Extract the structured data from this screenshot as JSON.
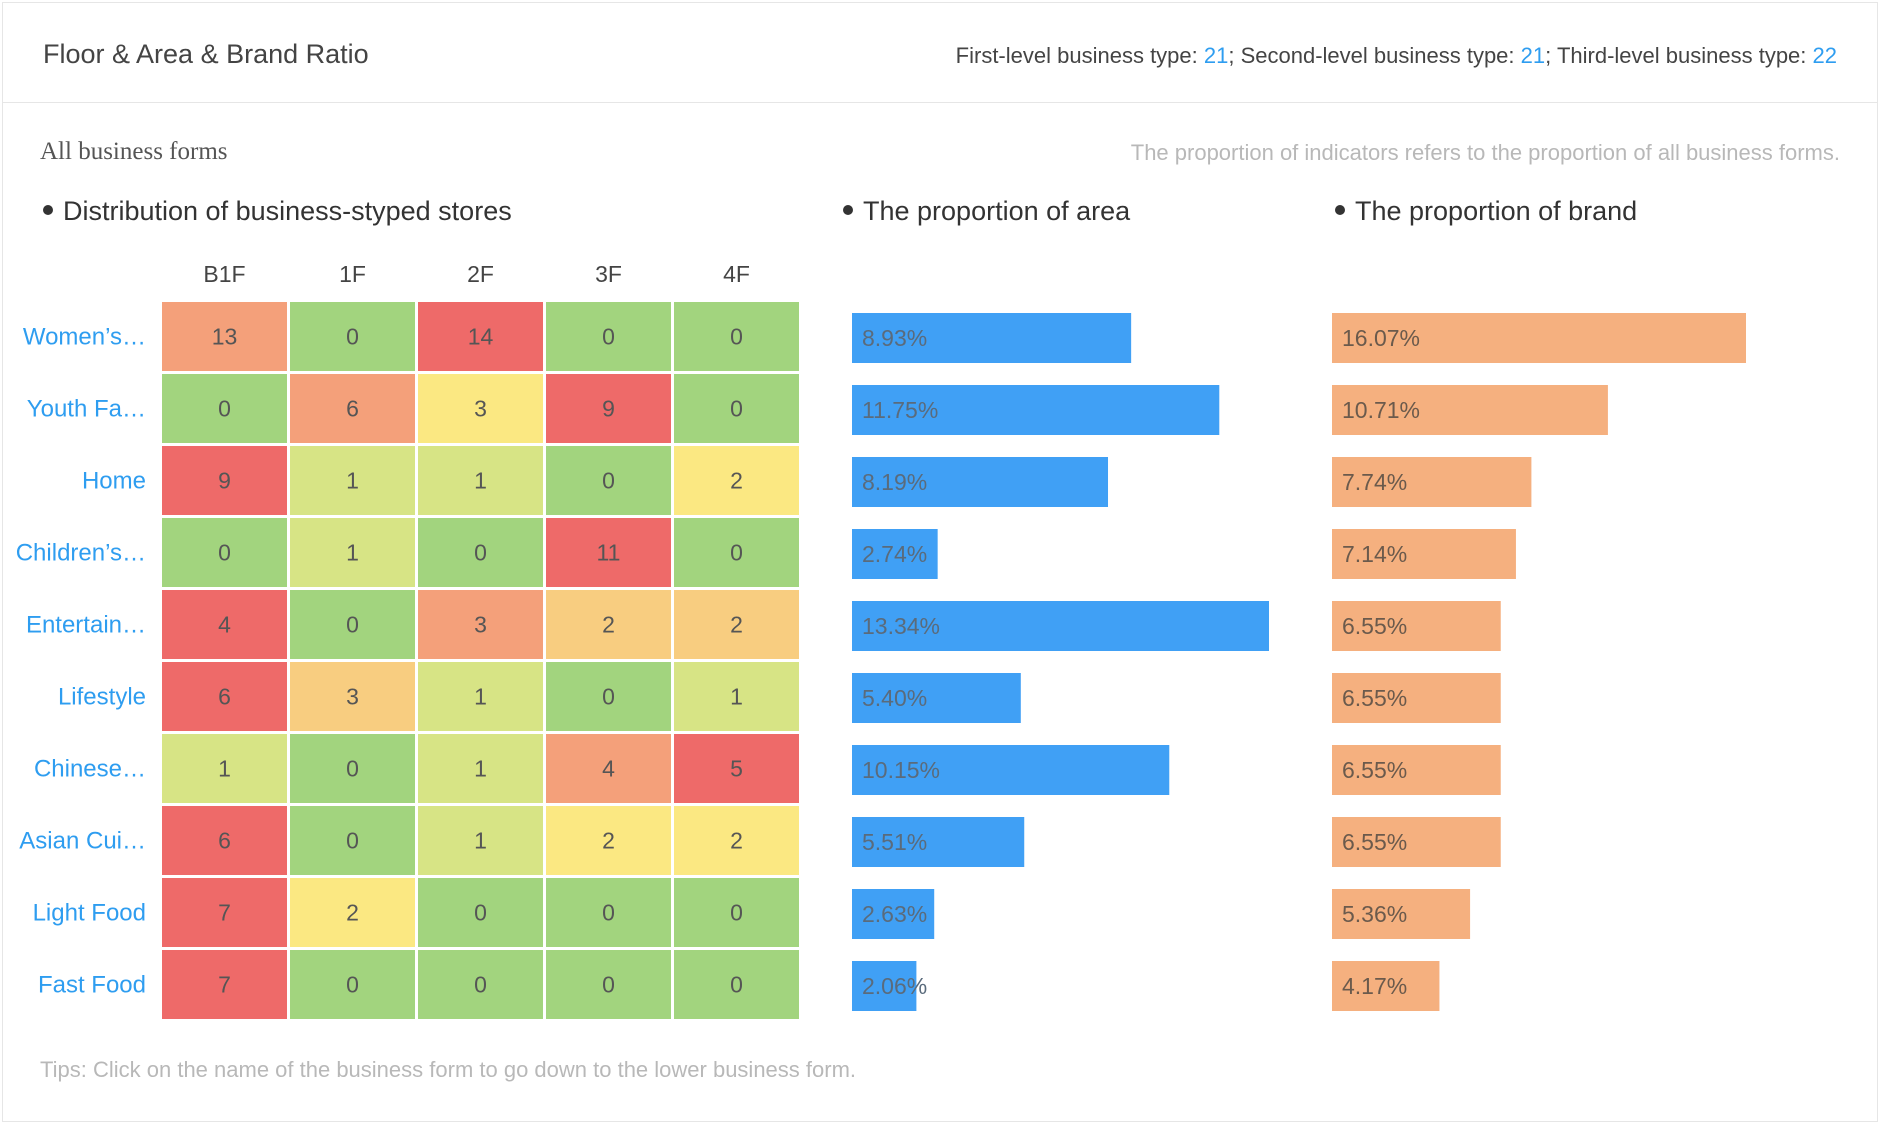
{
  "header": {
    "title": "Floor & Area & Brand Ratio",
    "summary": {
      "first_label": "First-level business type: ",
      "first_value": "21",
      "second_label": "; Second-level business type: ",
      "second_value": "21",
      "third_label": "; Third-level business type: ",
      "third_value": "22"
    }
  },
  "subtitle": "All business forms",
  "note": "The proportion of indicators refers to the proportion of all business forms.",
  "sections": {
    "distribution": "Distribution of business-styped stores",
    "area": "The proportion of area",
    "brand": "The proportion of  brand"
  },
  "tips": "Tips: Click on the name of the business form to go down to the lower business form.",
  "colors": {
    "label": "#2e9df0",
    "area_bar": "#40a0f5",
    "brand_bar": "#f5b07f",
    "heat_scale": [
      "#a2d47e",
      "#d7e485",
      "#fbe882",
      "#f8cd80",
      "#f4a07a",
      "#ee6a69"
    ]
  },
  "chart_data": [
    {
      "type": "heatmap",
      "title": "Distribution of business-styped stores",
      "columns": [
        "B1F",
        "1F",
        "2F",
        "3F",
        "4F"
      ],
      "rows": [
        "Women’s…",
        "Youth Fa…",
        "Home",
        "Children’s…",
        "Entertain…",
        "Lifestyle",
        "Chinese…",
        "Asian Cui…",
        "Light Food",
        "Fast Food"
      ],
      "values": [
        [
          13,
          0,
          14,
          0,
          0
        ],
        [
          0,
          6,
          3,
          9,
          0
        ],
        [
          9,
          1,
          1,
          0,
          2
        ],
        [
          0,
          1,
          0,
          11,
          0
        ],
        [
          4,
          0,
          3,
          2,
          2
        ],
        [
          6,
          3,
          1,
          0,
          1
        ],
        [
          1,
          0,
          1,
          4,
          5
        ],
        [
          6,
          0,
          1,
          2,
          2
        ],
        [
          7,
          2,
          0,
          0,
          0
        ],
        [
          7,
          0,
          0,
          0,
          0
        ]
      ],
      "cell_levels": [
        [
          4,
          0,
          5,
          0,
          0
        ],
        [
          0,
          4,
          2,
          5,
          0
        ],
        [
          5,
          1,
          1,
          0,
          2
        ],
        [
          0,
          1,
          0,
          5,
          0
        ],
        [
          5,
          0,
          4,
          3,
          3
        ],
        [
          5,
          3,
          1,
          0,
          1
        ],
        [
          1,
          0,
          1,
          4,
          5
        ],
        [
          5,
          0,
          1,
          2,
          2
        ],
        [
          5,
          2,
          0,
          0,
          0
        ],
        [
          5,
          0,
          0,
          0,
          0
        ]
      ]
    },
    {
      "type": "bar",
      "title": "The proportion of area",
      "categories": [
        "Women’s…",
        "Youth Fa…",
        "Home",
        "Children’s…",
        "Entertain…",
        "Lifestyle",
        "Chinese…",
        "Asian Cui…",
        "Light Food",
        "Fast Food"
      ],
      "values": [
        8.93,
        11.75,
        8.19,
        2.74,
        13.34,
        5.4,
        10.15,
        5.51,
        2.63,
        2.06
      ],
      "labels": [
        "8.93%",
        "11.75%",
        "8.19%",
        "2.74%",
        "13.34%",
        "5.40%",
        "10.15%",
        "5.51%",
        "2.63%",
        "2.06%"
      ],
      "xlim": [
        0,
        13.34
      ]
    },
    {
      "type": "bar",
      "title": "The proportion of  brand",
      "categories": [
        "Women’s…",
        "Youth Fa…",
        "Home",
        "Children’s…",
        "Entertain…",
        "Lifestyle",
        "Chinese…",
        "Asian Cui…",
        "Light Food",
        "Fast Food"
      ],
      "values": [
        16.07,
        10.71,
        7.74,
        7.14,
        6.55,
        6.55,
        6.55,
        6.55,
        5.36,
        4.17
      ],
      "labels": [
        "16.07%",
        "10.71%",
        "7.74%",
        "7.14%",
        "6.55%",
        "6.55%",
        "6.55%",
        "6.55%",
        "5.36%",
        "4.17%"
      ],
      "xlim": [
        0,
        16.07
      ]
    }
  ]
}
